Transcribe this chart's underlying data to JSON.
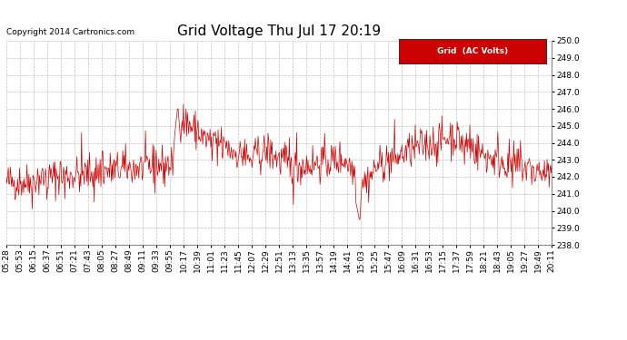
{
  "title": "Grid Voltage Thu Jul 17 20:19",
  "copyright": "Copyright 2014 Cartronics.com",
  "legend_label": "Grid  (AC Volts)",
  "ylim": [
    238.0,
    250.0
  ],
  "yticks": [
    238.0,
    239.0,
    240.0,
    241.0,
    242.0,
    243.0,
    244.0,
    245.0,
    246.0,
    247.0,
    248.0,
    249.0,
    250.0
  ],
  "line_color": "#cc0000",
  "background_color": "#ffffff",
  "grid_color": "#b0b0b0",
  "title_fontsize": 11,
  "tick_fontsize": 6.5,
  "copyright_fontsize": 6.5,
  "x_labels": [
    "05:28",
    "05:53",
    "06:15",
    "06:37",
    "06:51",
    "07:21",
    "07:43",
    "08:05",
    "08:27",
    "08:49",
    "09:11",
    "09:33",
    "09:55",
    "10:17",
    "10:39",
    "11:01",
    "11:23",
    "11:45",
    "12:07",
    "12:29",
    "12:51",
    "13:13",
    "13:35",
    "13:57",
    "14:19",
    "14:41",
    "15:03",
    "15:25",
    "15:47",
    "16:09",
    "16:31",
    "16:53",
    "17:15",
    "17:37",
    "17:59",
    "18:21",
    "18:43",
    "19:05",
    "19:27",
    "19:49",
    "20:11"
  ]
}
